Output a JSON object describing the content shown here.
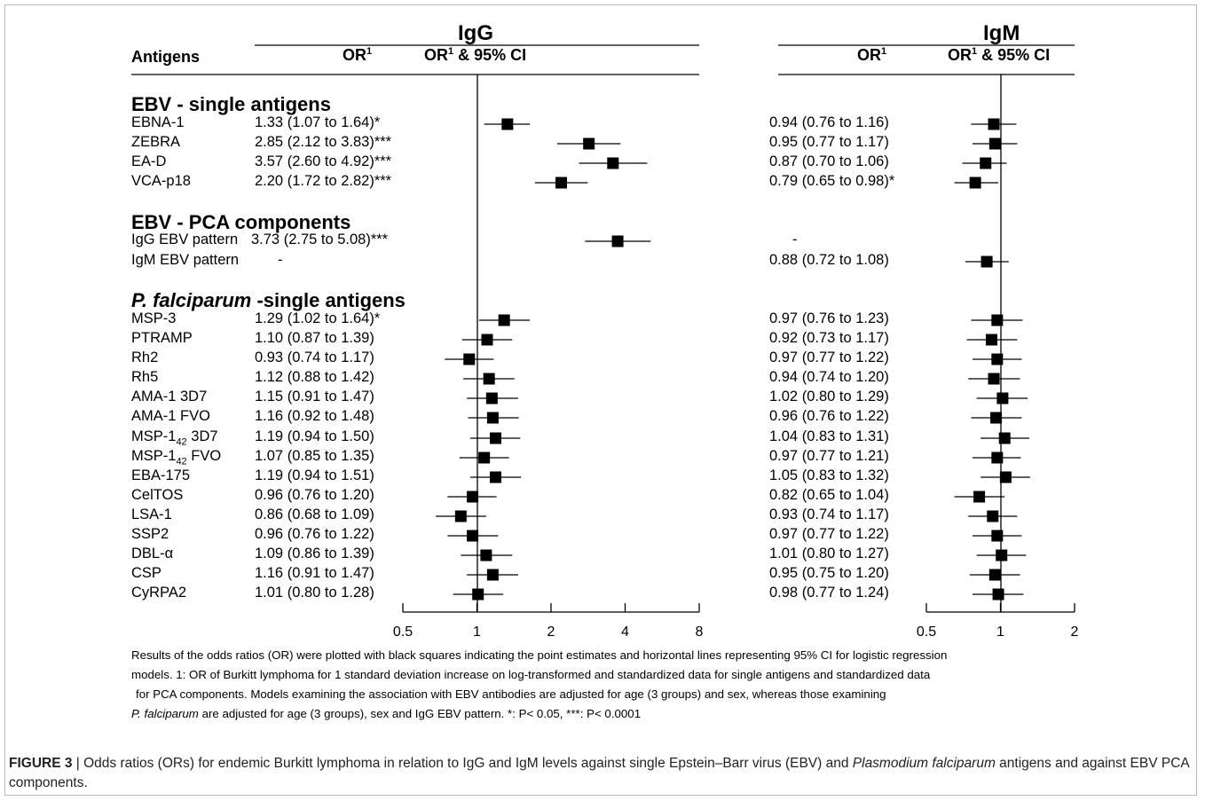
{
  "headers": {
    "antigens": "Antigens",
    "igg_title": "IgG",
    "igm_title": "IgM",
    "or_label": "OR",
    "or_sup": "1",
    "or_ci_label": "OR",
    "or_ci_sup": "1",
    "or_ci_suffix": " & 95% CI"
  },
  "sections": {
    "ebv_single": "EBV - single antigens",
    "ebv_pca": "EBV - PCA components",
    "pf_italic": "P. falciparum",
    "pf_rest": " -single antigens"
  },
  "chart_data": [
    {
      "type": "forest",
      "panel": "IgG",
      "x_scale": "log2",
      "xlim": [
        0.5,
        8
      ],
      "ticks": [
        "0.5",
        "1",
        "2",
        "4",
        "8"
      ],
      "reference_line": 1,
      "rows": [
        {
          "label": "EBNA-1",
          "or": 1.33,
          "lo": 1.07,
          "hi": 1.64,
          "text": "1.33 (1.07 to 1.64)*"
        },
        {
          "label": "ZEBRA",
          "or": 2.85,
          "lo": 2.12,
          "hi": 3.83,
          "text": "2.85 (2.12 to 3.83)***"
        },
        {
          "label": "EA-D",
          "or": 3.57,
          "lo": 2.6,
          "hi": 4.92,
          "text": "3.57 (2.60 to 4.92)***"
        },
        {
          "label": "VCA-p18",
          "or": 2.2,
          "lo": 1.72,
          "hi": 2.82,
          "text": "2.20 (1.72 to 2.82)***"
        },
        {
          "label": "IgG EBV pattern",
          "or": 3.73,
          "lo": 2.75,
          "hi": 5.08,
          "text": "3.73 (2.75 to 5.08)***"
        },
        {
          "label": "IgM EBV pattern",
          "or": null,
          "lo": null,
          "hi": null,
          "text": "-"
        },
        {
          "label": "MSP-3",
          "or": 1.29,
          "lo": 1.02,
          "hi": 1.64,
          "text": "1.29 (1.02 to 1.64)*"
        },
        {
          "label": "PTRAMP",
          "or": 1.1,
          "lo": 0.87,
          "hi": 1.39,
          "text": "1.10 (0.87 to 1.39)"
        },
        {
          "label": "Rh2",
          "or": 0.93,
          "lo": 0.74,
          "hi": 1.17,
          "text": "0.93 (0.74 to 1.17)"
        },
        {
          "label": "Rh5",
          "or": 1.12,
          "lo": 0.88,
          "hi": 1.42,
          "text": "1.12 (0.88 to 1.42)"
        },
        {
          "label": "AMA-1 3D7",
          "or": 1.15,
          "lo": 0.91,
          "hi": 1.47,
          "text": "1.15 (0.91 to 1.47)"
        },
        {
          "label": "AMA-1 FVO",
          "or": 1.16,
          "lo": 0.92,
          "hi": 1.48,
          "text": "1.16 (0.92 to 1.48)"
        },
        {
          "label": "MSP-1 42 3D7",
          "or": 1.19,
          "lo": 0.94,
          "hi": 1.5,
          "text": "1.19 (0.94 to 1.50)"
        },
        {
          "label": "MSP-1 42 FVO",
          "or": 1.07,
          "lo": 0.85,
          "hi": 1.35,
          "text": "1.07 (0.85 to 1.35)"
        },
        {
          "label": "EBA-175",
          "or": 1.19,
          "lo": 0.94,
          "hi": 1.51,
          "text": "1.19 (0.94 to 1.51)"
        },
        {
          "label": "CelTOS",
          "or": 0.96,
          "lo": 0.76,
          "hi": 1.2,
          "text": "0.96 (0.76 to 1.20)"
        },
        {
          "label": "LSA-1",
          "or": 0.86,
          "lo": 0.68,
          "hi": 1.09,
          "text": "0.86 (0.68 to 1.09)"
        },
        {
          "label": "SSP2",
          "or": 0.96,
          "lo": 0.76,
          "hi": 1.22,
          "text": "0.96 (0.76 to 1.22)"
        },
        {
          "label": "DBL-α",
          "or": 1.09,
          "lo": 0.86,
          "hi": 1.39,
          "text": "1.09 (0.86 to 1.39)"
        },
        {
          "label": "CSP",
          "or": 1.16,
          "lo": 0.91,
          "hi": 1.47,
          "text": "1.16 (0.91 to 1.47)"
        },
        {
          "label": "CyRPA2",
          "or": 1.01,
          "lo": 0.8,
          "hi": 1.28,
          "text": "1.01 (0.80 to 1.28)"
        }
      ]
    },
    {
      "type": "forest",
      "panel": "IgM",
      "x_scale": "log2",
      "xlim": [
        0.5,
        2
      ],
      "ticks": [
        "0.5",
        "1",
        "2"
      ],
      "reference_line": 1,
      "rows": [
        {
          "label": "EBNA-1",
          "or": 0.94,
          "lo": 0.76,
          "hi": 1.16,
          "text": "0.94 (0.76 to 1.16)"
        },
        {
          "label": "ZEBRA",
          "or": 0.95,
          "lo": 0.77,
          "hi": 1.17,
          "text": "0.95 (0.77 to 1.17)"
        },
        {
          "label": "EA-D",
          "or": 0.87,
          "lo": 0.7,
          "hi": 1.06,
          "text": "0.87 (0.70 to 1.06)"
        },
        {
          "label": "VCA-p18",
          "or": 0.79,
          "lo": 0.65,
          "hi": 0.98,
          "text": "0.79 (0.65 to 0.98)*"
        },
        {
          "label": "IgG EBV pattern",
          "or": null,
          "lo": null,
          "hi": null,
          "text": "-"
        },
        {
          "label": "IgM EBV pattern",
          "or": 0.88,
          "lo": 0.72,
          "hi": 1.08,
          "text": "0.88 (0.72 to 1.08)"
        },
        {
          "label": "MSP-3",
          "or": 0.97,
          "lo": 0.76,
          "hi": 1.23,
          "text": "0.97 (0.76 to 1.23)"
        },
        {
          "label": "PTRAMP",
          "or": 0.92,
          "lo": 0.73,
          "hi": 1.17,
          "text": "0.92 (0.73 to 1.17)"
        },
        {
          "label": "Rh2",
          "or": 0.97,
          "lo": 0.77,
          "hi": 1.22,
          "text": "0.97 (0.77 to 1.22)"
        },
        {
          "label": "Rh5",
          "or": 0.94,
          "lo": 0.74,
          "hi": 1.2,
          "text": "0.94 (0.74 to 1.20)"
        },
        {
          "label": "AMA-1 3D7",
          "or": 1.02,
          "lo": 0.8,
          "hi": 1.29,
          "text": "1.02 (0.80 to 1.29)"
        },
        {
          "label": "AMA-1 FVO",
          "or": 0.96,
          "lo": 0.76,
          "hi": 1.22,
          "text": "0.96 (0.76 to 1.22)"
        },
        {
          "label": "MSP-1 42 3D7",
          "or": 1.04,
          "lo": 0.83,
          "hi": 1.31,
          "text": "1.04 (0.83 to 1.31)"
        },
        {
          "label": "MSP-1 42 FVO",
          "or": 0.97,
          "lo": 0.77,
          "hi": 1.21,
          "text": "0.97 (0.77 to 1.21)"
        },
        {
          "label": "EBA-175",
          "or": 1.05,
          "lo": 0.83,
          "hi": 1.32,
          "text": "1.05 (0.83 to 1.32)"
        },
        {
          "label": "CelTOS",
          "or": 0.82,
          "lo": 0.65,
          "hi": 1.04,
          "text": "0.82 (0.65 to 1.04)"
        },
        {
          "label": "LSA-1",
          "or": 0.93,
          "lo": 0.74,
          "hi": 1.17,
          "text": "0.93 (0.74 to 1.17)"
        },
        {
          "label": "SSP2",
          "or": 0.97,
          "lo": 0.77,
          "hi": 1.22,
          "text": "0.97 (0.77 to 1.22)"
        },
        {
          "label": "DBL-α",
          "or": 1.01,
          "lo": 0.8,
          "hi": 1.27,
          "text": "1.01 (0.80 to 1.27)"
        },
        {
          "label": "CSP",
          "or": 0.95,
          "lo": 0.75,
          "hi": 1.2,
          "text": "0.95 (0.75 to 1.20)"
        },
        {
          "label": "CyRPA2",
          "or": 0.98,
          "lo": 0.77,
          "hi": 1.24,
          "text": "0.98 (0.77 to 1.24)"
        }
      ]
    }
  ],
  "notes": {
    "line1": "Results of the odds ratios (OR) were plotted with black squares indicating the point estimates and horizontal lines representing 95% CI for logistic regression",
    "line2": "models. 1: OR of Burkitt lymphoma for 1 standard deviation increase on log-transformed and standardized data for single antigens and standardized data",
    "line3": "for PCA components. Models examining the association with EBV antibodies are adjusted for age (3 groups) and sex, whereas those examining",
    "line4_italic": "P. falciparum",
    "line4_rest": "  are adjusted for age (3 groups), sex and IgG EBV pattern. *: P< 0.05, ***: P< 0.0001"
  },
  "caption": {
    "label": "FIGURE 3",
    "sep": " | ",
    "text1": "Odds ratios (ORs) for endemic Burkitt lymphoma in relation to IgG and IgM levels against single Epstein–Barr virus (EBV) and ",
    "italic": "Plasmodium falciparum",
    "text2": " antigens and against EBV PCA components."
  },
  "colors": {
    "marker": "#000000",
    "axis": "#000000",
    "frame": "#b9b9b9"
  }
}
